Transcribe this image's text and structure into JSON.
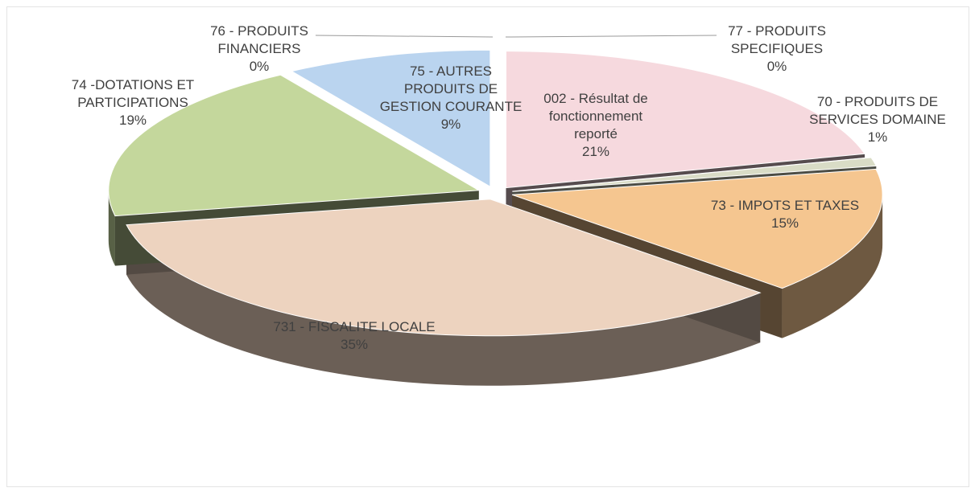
{
  "chart_data": {
    "type": "pie",
    "categories": [
      "002 - Résultat de fonctionnement reporté",
      "77 - PRODUITS SPECIFIQUES",
      "70 - PRODUITS DE SERVICES DOMAINE",
      "73 - IMPOTS ET TAXES",
      "731 - FISCALITE LOCALE",
      "74 -DOTATIONS ET PARTICIPATIONS",
      "76 - PRODUITS FINANCIERS",
      "75 - AUTRES PRODUITS DE GESTION COURANTE"
    ],
    "values": [
      21,
      0,
      1,
      15,
      35,
      19,
      0,
      9
    ],
    "value_labels": [
      "21%",
      "0%",
      "1%",
      "15%",
      "35%",
      "19%",
      "0%",
      "9%"
    ],
    "colors": [
      "#f6d9de",
      "#e8d6e0",
      "#d9dcc6",
      "#f5c690",
      "#edd3bf",
      "#c4d79c",
      "#b7cbe6",
      "#bad4ef"
    ]
  }
}
